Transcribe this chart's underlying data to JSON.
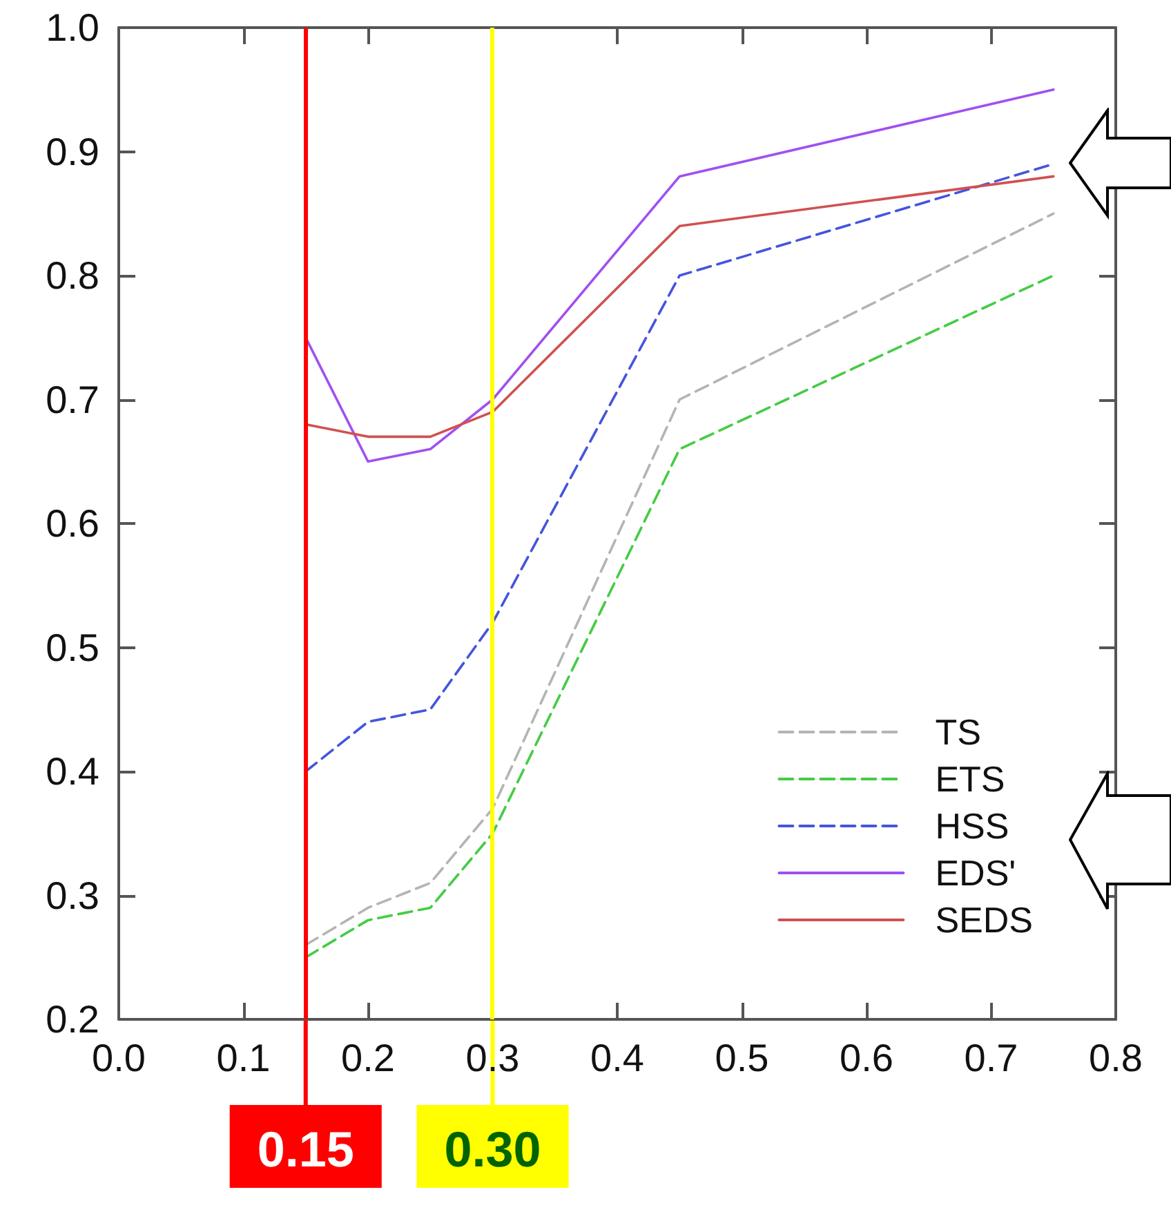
{
  "chart_data": {
    "type": "line",
    "x": [
      0.15,
      0.2,
      0.25,
      0.3,
      0.45,
      0.75
    ],
    "series": [
      {
        "name": "TS",
        "color": "#b4b4b4",
        "line_style": "dashed",
        "values": [
          0.26,
          0.29,
          0.31,
          0.37,
          0.7,
          0.85
        ]
      },
      {
        "name": "ETS",
        "color": "#44cc44",
        "line_style": "dashed",
        "values": [
          0.25,
          0.28,
          0.29,
          0.35,
          0.66,
          0.8
        ]
      },
      {
        "name": "HSS",
        "color": "#4455dd",
        "line_style": "dashed",
        "values": [
          0.4,
          0.44,
          0.45,
          0.52,
          0.8,
          0.89
        ]
      },
      {
        "name": "EDS'",
        "color": "#a050f0",
        "line_style": "solid",
        "values": [
          0.75,
          0.65,
          0.66,
          0.7,
          0.88,
          0.95
        ]
      },
      {
        "name": "SEDS",
        "color": "#d05050",
        "line_style": "solid",
        "values": [
          0.68,
          0.67,
          0.67,
          0.69,
          0.84,
          0.88
        ]
      }
    ],
    "xlim": [
      0.0,
      0.8
    ],
    "xticks": [
      {
        "value": 0,
        "label": "0.0"
      },
      0.1,
      0.2,
      0.3,
      0.4,
      0.5,
      0.6,
      0.7,
      0.8
    ],
    "ylim": [
      0.2,
      1.0
    ],
    "yticks": [
      0.2,
      0.3,
      0.4,
      0.5,
      0.6,
      0.7,
      0.8,
      0.9,
      {
        "value": 1,
        "label": "1.0"
      }
    ],
    "ref_lines": [
      {
        "axis": "x",
        "value": 0.15,
        "label": "0.15",
        "color": "#ff0000"
      },
      {
        "axis": "x",
        "value": 0.3,
        "label": "0.30",
        "color": "#ffff00"
      }
    ],
    "grid": false,
    "legend": "bottom right",
    "marker": "none"
  }
}
